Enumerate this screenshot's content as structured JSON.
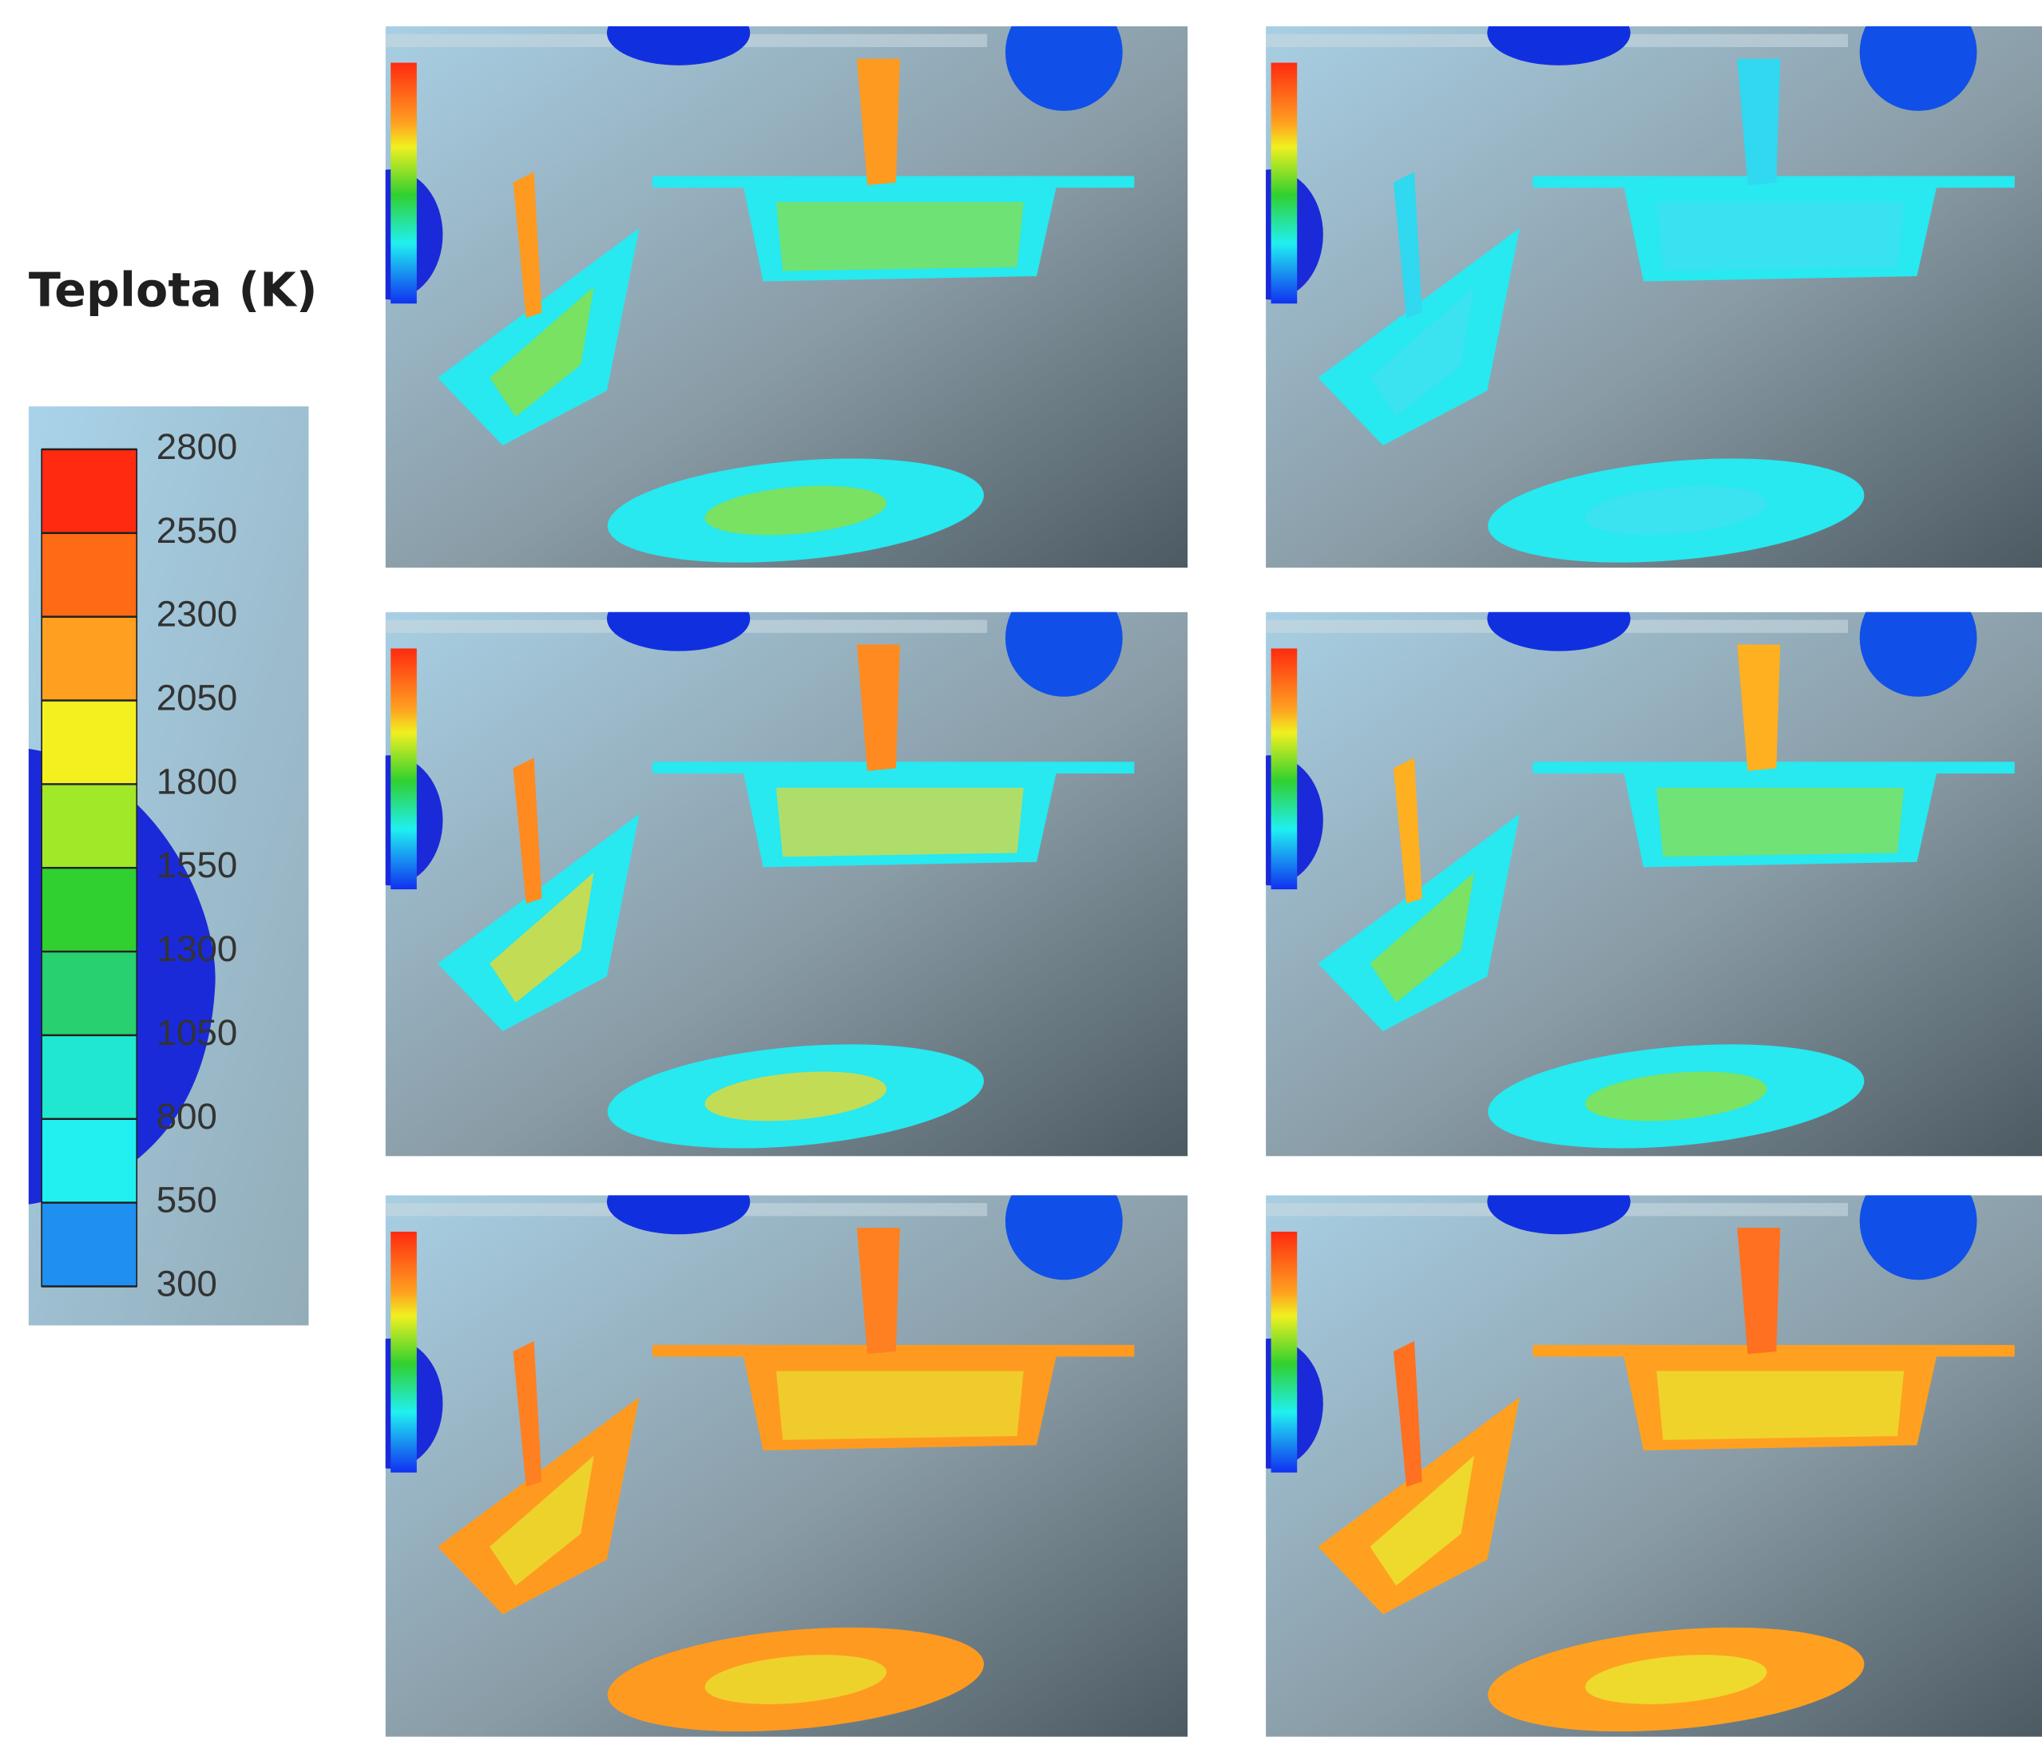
{
  "legend": {
    "title": "Teplota (K)",
    "ticks": [
      2800,
      2550,
      2300,
      2050,
      1800,
      1550,
      1300,
      1050,
      800,
      550,
      300
    ]
  }
}
